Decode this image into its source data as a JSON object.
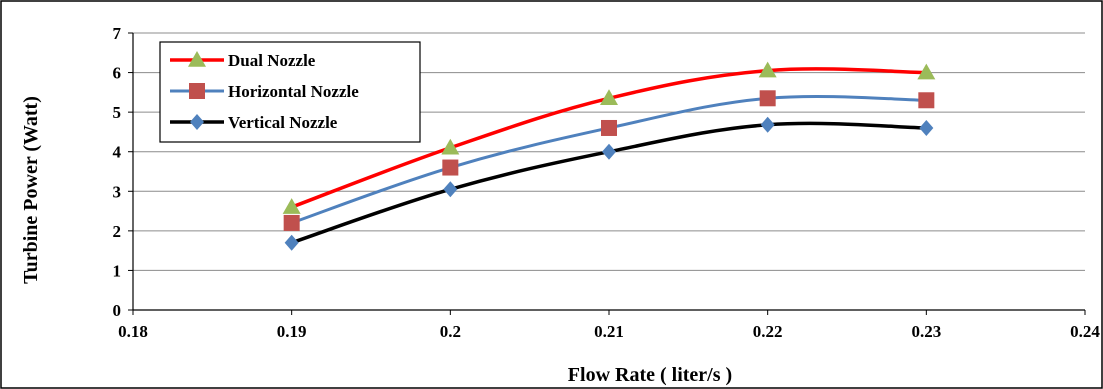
{
  "chart_data": {
    "type": "line",
    "title": "",
    "xlabel": "Flow Rate ( liter/s )",
    "ylabel": "Turbine Power (Watt)",
    "xlim": [
      0.18,
      0.24
    ],
    "ylim": [
      0,
      7
    ],
    "x_ticks": [
      "0.18",
      "0.19",
      "0.2",
      "0.21",
      "0.22",
      "0.23",
      "0.24"
    ],
    "y_ticks": [
      "0",
      "1",
      "2",
      "3",
      "4",
      "5",
      "6",
      "7"
    ],
    "grid": "horizontal",
    "legend_position": "top-left",
    "x": [
      0.19,
      0.2,
      0.21,
      0.22,
      0.23
    ],
    "series": [
      {
        "name": "Dual Nozzle",
        "values": [
          2.6,
          4.1,
          5.35,
          6.05,
          6.0
        ],
        "line_color": "#ff0000",
        "marker_color": "#9bbb59",
        "marker": "triangle"
      },
      {
        "name": "Horizontal Nozzle",
        "values": [
          2.2,
          3.6,
          4.6,
          5.35,
          5.3
        ],
        "line_color": "#4f81bd",
        "marker_color": "#c0504d",
        "marker": "square"
      },
      {
        "name": "Vertical Nozzle",
        "values": [
          1.7,
          3.05,
          4.0,
          4.68,
          4.6
        ],
        "line_color": "#000000",
        "marker_color": "#4f81bd",
        "marker": "diamond"
      }
    ]
  }
}
